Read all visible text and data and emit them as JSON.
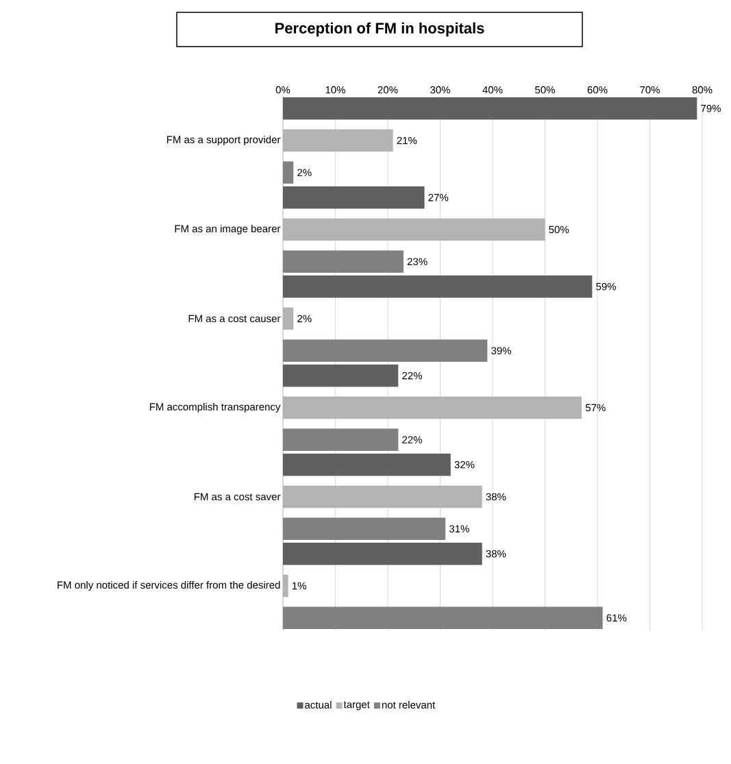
{
  "chart_data": {
    "type": "bar",
    "orientation": "horizontal",
    "title": "Perception of FM in hospitals",
    "categories": [
      "FM as a support provider",
      "FM as an image bearer",
      "FM as a cost causer",
      "FM accomplish transparency",
      "FM as a cost saver",
      "FM only noticed if services differ from the desired"
    ],
    "series": [
      {
        "name": "actual",
        "color": "#606060",
        "values": [
          79,
          27,
          59,
          22,
          32,
          38
        ],
        "value_labels": [
          "79%",
          "27%",
          "59%",
          "22%",
          "32%",
          "38%"
        ]
      },
      {
        "name": "target",
        "color": "#b3b3b3",
        "values": [
          21,
          50,
          2,
          57,
          38,
          1
        ],
        "value_labels": [
          "21%",
          "50%",
          "2%",
          "57%",
          "38%",
          "1%"
        ]
      },
      {
        "name": "not relevant",
        "color": "#808080",
        "values": [
          2,
          23,
          39,
          22,
          31,
          61
        ],
        "value_labels": [
          "2%",
          "23%",
          "39%",
          "22%",
          "31%",
          "61%"
        ]
      }
    ],
    "xlim": [
      0,
      80
    ],
    "xticks": [
      {
        "value": 0,
        "label": "0%"
      },
      {
        "value": 10,
        "label": "10%"
      },
      {
        "value": 20,
        "label": "20%"
      },
      {
        "value": 30,
        "label": "30%"
      },
      {
        "value": 40,
        "label": "40%"
      },
      {
        "value": 50,
        "label": "50%"
      },
      {
        "value": 60,
        "label": "60%"
      },
      {
        "value": 70,
        "label": "70%"
      },
      {
        "value": 80,
        "label": "80%"
      }
    ],
    "grid": "x",
    "legend": "bottom"
  }
}
